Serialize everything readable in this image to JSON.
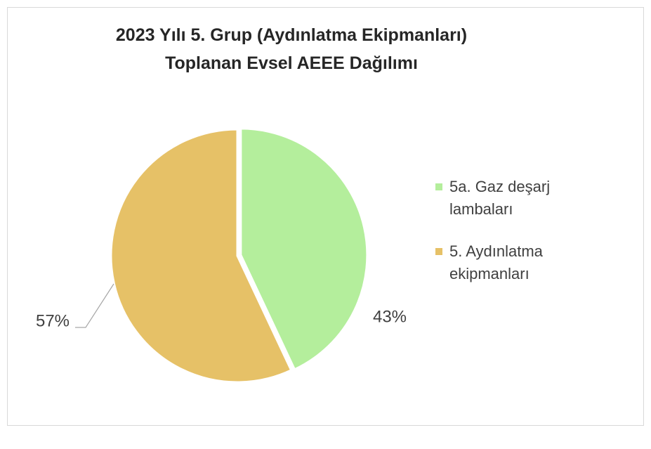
{
  "chart_data": {
    "type": "pie",
    "title": "2023 Yılı 5. Grup (Aydınlatma Ekipmanları) Toplanan Evsel AEEE Dağılımı",
    "categories": [
      "5a. Gaz deşarj lambaları",
      "5. Aydınlatma ekipmanları"
    ],
    "values": [
      43,
      57
    ],
    "value_labels": [
      "43%",
      "57%"
    ],
    "colors": [
      "#b4ee9c",
      "#e6c167"
    ],
    "legend": "right"
  }
}
